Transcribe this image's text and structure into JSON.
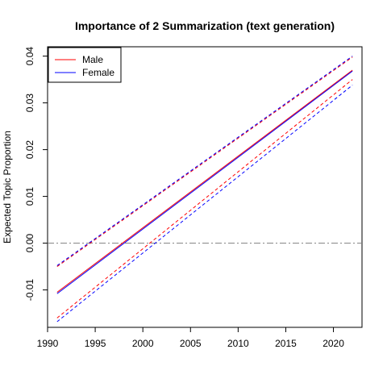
{
  "chart_data": {
    "type": "line",
    "title": "Importance of 2 Summarization (text generation)",
    "xlabel": "",
    "ylabel": "Expected Topic Proportion",
    "xlim": [
      1990,
      2023
    ],
    "ylim": [
      -0.018,
      0.042
    ],
    "x_ticks": [
      1990,
      1995,
      2000,
      2005,
      2010,
      2015,
      2020
    ],
    "y_ticks": [
      -0.01,
      0.0,
      0.01,
      0.02,
      0.03,
      0.04
    ],
    "y_tick_labels": [
      "-0.01",
      "0.00",
      "0.01",
      "0.02",
      "0.03",
      "0.04"
    ],
    "reference_line": {
      "y": 0.0,
      "style": "dash-dot",
      "color": "#808080"
    },
    "legend": {
      "position": "top-left"
    },
    "grid": false,
    "series": [
      {
        "name": "Male",
        "color": "#ff0000",
        "x": [
          1991,
          2022
        ],
        "estimate": [
          -0.0105,
          0.037
        ],
        "lower": [
          -0.016,
          0.035
        ],
        "upper": [
          -0.005,
          0.0398
        ]
      },
      {
        "name": "Female",
        "color": "#0000ff",
        "x": [
          1991,
          2022
        ],
        "estimate": [
          -0.0108,
          0.0368
        ],
        "lower": [
          -0.0168,
          0.0338
        ],
        "upper": [
          -0.0048,
          0.04
        ]
      }
    ]
  }
}
